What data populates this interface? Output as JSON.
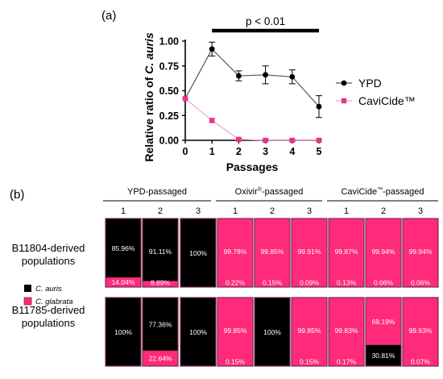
{
  "panel_a_label": "(a)",
  "panel_b_label": "(b)",
  "colors": {
    "ypd": "#000000",
    "cavicide": "#e8348c",
    "ypd_line": "#555555",
    "cavicide_line": "#f2a6c8",
    "c_auris_cell": "#000000",
    "c_glabrata_cell": "#ff2a7a",
    "heat_border": "#7a2a55"
  },
  "chart_data": [
    {
      "type": "line",
      "title": "",
      "xlabel": "Passages",
      "ylabel_prefix": "Relative ratio of ",
      "ylabel_species": "C. auris",
      "x": [
        0,
        1,
        2,
        3,
        4,
        5
      ],
      "xlim": [
        0,
        5
      ],
      "ylim": [
        0,
        1.0
      ],
      "yticks": [
        "0.00",
        "0.25",
        "0.50",
        "0.75",
        "1.00"
      ],
      "xticks": [
        "0",
        "1",
        "2",
        "3",
        "4",
        "5"
      ],
      "significance": {
        "label": "p < 0.01",
        "x_from": 1,
        "x_to": 5
      },
      "legend_position": "right",
      "series": [
        {
          "name": "YPD",
          "marker": "circle",
          "values": [
            0.42,
            0.92,
            0.65,
            0.66,
            0.64,
            0.34
          ],
          "errors": [
            0,
            0.07,
            0.05,
            0.09,
            0.07,
            0.11
          ]
        },
        {
          "name": "CaviCide™",
          "marker": "square",
          "values": [
            0.42,
            0.2,
            0.01,
            0.0,
            0.0,
            0.0
          ],
          "errors": [
            0,
            0.02,
            0.01,
            0.01,
            0.01,
            0.01
          ]
        }
      ]
    },
    {
      "type": "heatmap",
      "groups": [
        {
          "label": "YPD-passaged",
          "superscript": "",
          "suffix": ""
        },
        {
          "label": "Oxivir",
          "superscript": "®",
          "suffix": "-passaged"
        },
        {
          "label": "CaviCide",
          "superscript": "™",
          "suffix": "-passaged"
        }
      ],
      "columns": [
        "1",
        "2",
        "3",
        "1",
        "2",
        "3",
        "1",
        "2",
        "3"
      ],
      "rows": [
        {
          "label_lines": [
            "B11804-derived",
            "populations"
          ]
        },
        {
          "label_lines": [
            "B11785-derived",
            "populations"
          ]
        }
      ],
      "legend": [
        "C. auris",
        "C. glabrata"
      ],
      "cells": [
        [
          {
            "c_auris": 85.96,
            "c_glabrata": 14.04,
            "auris_label": "85.96%",
            "glabrata_label": "14.04%"
          },
          {
            "c_auris": 91.11,
            "c_glabrata": 8.89,
            "auris_label": "91.11%",
            "glabrata_label": "8.89%"
          },
          {
            "c_auris": 100,
            "c_glabrata": 0,
            "auris_label": "100%",
            "glabrata_label": ""
          },
          {
            "c_auris": 0.22,
            "c_glabrata": 99.78,
            "auris_label": "0.22%",
            "glabrata_label": "99.78%"
          },
          {
            "c_auris": 0.15,
            "c_glabrata": 99.85,
            "auris_label": "0.15%",
            "glabrata_label": "99.85%"
          },
          {
            "c_auris": 0.09,
            "c_glabrata": 99.91,
            "auris_label": "0.09%",
            "glabrata_label": "99.91%"
          },
          {
            "c_auris": 0.13,
            "c_glabrata": 99.87,
            "auris_label": "0.13%",
            "glabrata_label": "99.87%"
          },
          {
            "c_auris": 0.06,
            "c_glabrata": 99.94,
            "auris_label": "0.06%",
            "glabrata_label": "99.94%"
          },
          {
            "c_auris": 0.06,
            "c_glabrata": 99.94,
            "auris_label": "0.06%",
            "glabrata_label": "99.94%"
          }
        ],
        [
          {
            "c_auris": 100,
            "c_glabrata": 0,
            "auris_label": "100%",
            "glabrata_label": ""
          },
          {
            "c_auris": 77.36,
            "c_glabrata": 22.64,
            "auris_label": "77.36%",
            "glabrata_label": "22.64%"
          },
          {
            "c_auris": 100,
            "c_glabrata": 0,
            "auris_label": "100%",
            "glabrata_label": ""
          },
          {
            "c_auris": 0.15,
            "c_glabrata": 99.85,
            "auris_label": "0.15%",
            "glabrata_label": "99.85%"
          },
          {
            "c_auris": 100,
            "c_glabrata": 0,
            "auris_label": "100%",
            "glabrata_label": ""
          },
          {
            "c_auris": 0.15,
            "c_glabrata": 99.85,
            "auris_label": "0.15%",
            "glabrata_label": "99.85%"
          },
          {
            "c_auris": 0.17,
            "c_glabrata": 99.83,
            "auris_label": "0.17%",
            "glabrata_label": "99.83%"
          },
          {
            "c_auris": 30.81,
            "c_glabrata": 69.19,
            "auris_label": "30.81%",
            "glabrata_label": "69.19%"
          },
          {
            "c_auris": 0.07,
            "c_glabrata": 99.93,
            "auris_label": "0.07%",
            "glabrata_label": "99.93%"
          }
        ]
      ]
    }
  ]
}
